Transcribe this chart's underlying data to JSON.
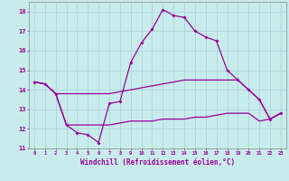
{
  "xlabel": "Windchill (Refroidissement éolien,°C)",
  "background_color": "#c8ecec",
  "grid_color": "#b0d8d8",
  "line_color": "#990099",
  "x_values": [
    0,
    1,
    2,
    3,
    4,
    5,
    6,
    7,
    8,
    9,
    10,
    11,
    12,
    13,
    14,
    15,
    16,
    17,
    18,
    19,
    20,
    21,
    22,
    23
  ],
  "line1": [
    14.4,
    14.3,
    13.8,
    12.2,
    11.8,
    11.7,
    11.3,
    13.3,
    13.4,
    15.4,
    16.4,
    17.1,
    18.1,
    17.8,
    17.7,
    17.0,
    16.7,
    16.5,
    15.0,
    14.5,
    14.0,
    13.5,
    12.5,
    12.8
  ],
  "line2": [
    14.4,
    14.3,
    13.8,
    13.8,
    13.8,
    13.8,
    13.8,
    13.8,
    13.9,
    14.0,
    14.1,
    14.2,
    14.3,
    14.4,
    14.5,
    14.5,
    14.5,
    14.5,
    14.5,
    14.5,
    14.0,
    13.5,
    12.5,
    12.8
  ],
  "line3": [
    14.4,
    14.3,
    13.8,
    12.2,
    12.2,
    12.2,
    12.2,
    12.2,
    12.3,
    12.4,
    12.4,
    12.4,
    12.5,
    12.5,
    12.5,
    12.6,
    12.6,
    12.7,
    12.8,
    12.8,
    12.8,
    12.4,
    12.5,
    12.8
  ],
  "ylim": [
    11,
    18.5
  ],
  "xlim": [
    -0.5,
    23.5
  ],
  "yticks": [
    11,
    12,
    13,
    14,
    15,
    16,
    17,
    18
  ],
  "xticks": [
    0,
    1,
    2,
    3,
    4,
    5,
    6,
    7,
    8,
    9,
    10,
    11,
    12,
    13,
    14,
    15,
    16,
    17,
    18,
    19,
    20,
    21,
    22,
    23
  ]
}
